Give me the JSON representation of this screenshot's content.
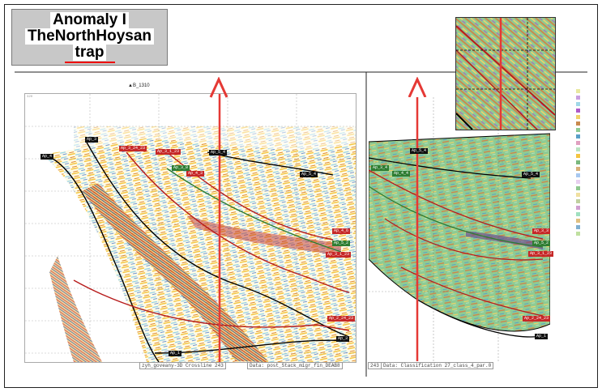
{
  "title": {
    "line1": "Anomaly I",
    "line2": "TheNorthHoysan",
    "line3": "trap"
  },
  "marker_label": "▲B_1310",
  "left_panel": {
    "caption_survey": "zyh_goveany-3D Crossline 243",
    "caption_data": "Data: post_Stack_migr_fin_DEAB8",
    "horizon_tags": [
      {
        "text": "Ap_3",
        "color": "black"
      },
      {
        "text": "Ap_4",
        "color": "black"
      },
      {
        "text": "Ap_3_24_23",
        "color": "red"
      },
      {
        "text": "Ap_3_1_23",
        "color": "red"
      },
      {
        "text": "Ap_3_0",
        "color": "green"
      },
      {
        "text": "Ap_4_3",
        "color": "red"
      },
      {
        "text": "Ap_5_4",
        "color": "black"
      },
      {
        "text": "Ap_5_4",
        "color": "black"
      },
      {
        "text": "Ap_4_6",
        "color": "red"
      },
      {
        "text": "Ap_5_2",
        "color": "green"
      },
      {
        "text": "Ap_3_1_23",
        "color": "red"
      },
      {
        "text": "Ap_2_24_23",
        "color": "red"
      },
      {
        "text": "Ap_3",
        "color": "black"
      },
      {
        "text": "Ap_1",
        "color": "black"
      }
    ]
  },
  "right_panel": {
    "caption_survey": "243",
    "caption_data": "Data: Classification 27_class_4_par.0",
    "horizon_tags": [
      {
        "text": "Ap_5_4",
        "color": "black"
      },
      {
        "text": "Ap_3_4",
        "color": "green"
      },
      {
        "text": "Ap_4_4",
        "color": "green"
      },
      {
        "text": "Ap_5_4",
        "color": "black"
      },
      {
        "text": "Ap_3_3",
        "color": "red"
      },
      {
        "text": "Ap_5_2",
        "color": "green"
      },
      {
        "text": "Ap_3_1_23",
        "color": "red"
      },
      {
        "text": "Ap_2_24_23",
        "color": "red"
      },
      {
        "text": "Ap_1",
        "color": "black"
      }
    ]
  },
  "colors": {
    "well_arrow": "#e53935",
    "horizon_line": "#000000",
    "fault_line": "#b71c1c",
    "classification_base": "#8ecb93"
  }
}
